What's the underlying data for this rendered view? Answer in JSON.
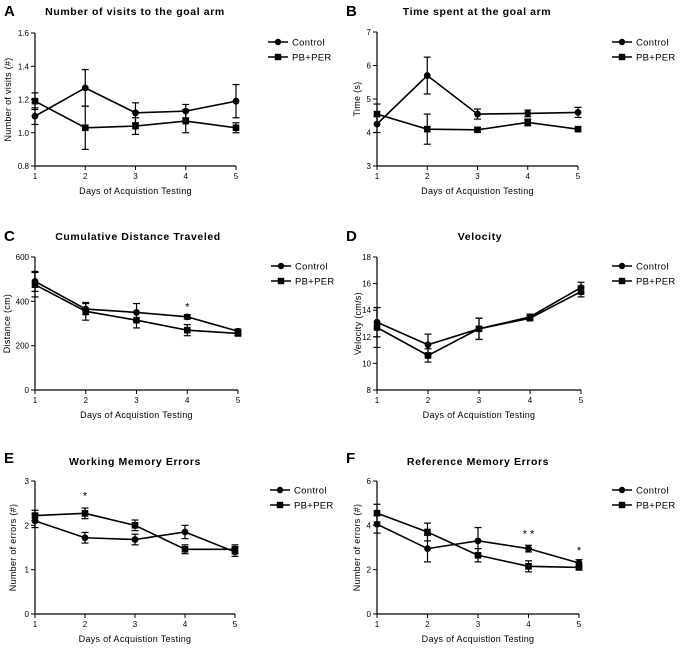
{
  "chart_data": [
    {
      "type": "line",
      "panel": "A",
      "title": "Number of visits to the goal arm",
      "xlabel": "Days of Acquistion Testing",
      "ylabel": "Number of visits (#)",
      "x": [
        1,
        2,
        3,
        4,
        5
      ],
      "xticks": [
        "1",
        "2",
        "3",
        "4",
        "5"
      ],
      "ylim": [
        0.8,
        1.6
      ],
      "yticks": [
        "0.8",
        "1.0",
        "1.2",
        "1.4",
        "1.6"
      ],
      "ytick_values": [
        0.8,
        1.0,
        1.2,
        1.4,
        1.6
      ],
      "series": [
        {
          "name": "Control",
          "marker": "circle",
          "values": [
            1.1,
            1.27,
            1.12,
            1.13,
            1.19
          ],
          "errors": [
            0.05,
            0.11,
            0.06,
            0.04,
            0.1
          ]
        },
        {
          "name": "PB+PER",
          "marker": "square",
          "values": [
            1.19,
            1.03,
            1.04,
            1.07,
            1.03
          ],
          "errors": [
            0.05,
            0.13,
            0.05,
            0.07,
            0.03
          ]
        }
      ],
      "annotations": []
    },
    {
      "type": "line",
      "panel": "B",
      "title": "Time spent at the goal arm",
      "xlabel": "Days of Acquistion Testing",
      "ylabel": "Time (s)",
      "x": [
        1,
        2,
        3,
        4,
        5
      ],
      "xticks": [
        "1",
        "2",
        "3",
        "4",
        "5"
      ],
      "ylim": [
        3,
        7
      ],
      "yticks": [
        "3",
        "4",
        "5",
        "6",
        "7"
      ],
      "ytick_values": [
        3,
        4,
        5,
        6,
        7
      ],
      "series": [
        {
          "name": "Control",
          "marker": "circle",
          "values": [
            4.25,
            5.7,
            4.55,
            4.57,
            4.6
          ],
          "errors": [
            0.25,
            0.55,
            0.15,
            0.1,
            0.15
          ]
        },
        {
          "name": "PB+PER",
          "marker": "square",
          "values": [
            4.55,
            4.1,
            4.08,
            4.3,
            4.1
          ],
          "errors": [
            0.3,
            0.45,
            0.06,
            0.1,
            0.05
          ]
        }
      ],
      "annotations": []
    },
    {
      "type": "line",
      "panel": "C",
      "title": "Cumulative Distance Traveled",
      "xlabel": "Days of Acquistion Testing",
      "ylabel": "Distance (cm)",
      "x": [
        1,
        2,
        3,
        4,
        5
      ],
      "xticks": [
        "1",
        "2",
        "3",
        "4",
        "5"
      ],
      "ylim": [
        0,
        600
      ],
      "yticks": [
        "0",
        "200",
        "400",
        "600"
      ],
      "ytick_values": [
        0,
        200,
        400,
        600
      ],
      "series": [
        {
          "name": "Control",
          "marker": "circle",
          "values": [
            490,
            365,
            350,
            330,
            265
          ],
          "errors": [
            45,
            25,
            40,
            10,
            10
          ]
        },
        {
          "name": "PB+PER",
          "marker": "square",
          "values": [
            475,
            355,
            315,
            270,
            255
          ],
          "errors": [
            55,
            40,
            35,
            25,
            10
          ]
        }
      ],
      "annotations": [
        {
          "text": "*",
          "x": 4,
          "y": 358
        }
      ]
    },
    {
      "type": "line",
      "panel": "D",
      "title": "Velocity",
      "xlabel": "Days of Acquistion Testing",
      "ylabel": "Velocity (cm/s)",
      "x": [
        1,
        2,
        3,
        4,
        5
      ],
      "xticks": [
        "1",
        "2",
        "3",
        "4",
        "5"
      ],
      "ylim": [
        8,
        18
      ],
      "yticks": [
        "8",
        "10",
        "12",
        "14",
        "16",
        "18"
      ],
      "ytick_values": [
        8,
        10,
        12,
        14,
        16,
        18
      ],
      "series": [
        {
          "name": "Control",
          "marker": "circle",
          "values": [
            13.1,
            11.4,
            12.6,
            13.5,
            15.7
          ],
          "errors": [
            1.1,
            0.8,
            0.8,
            0.2,
            0.4
          ]
        },
        {
          "name": "PB+PER",
          "marker": "square",
          "values": [
            12.7,
            10.6,
            12.6,
            13.4,
            15.4
          ],
          "errors": [
            1.5,
            0.5,
            0.8,
            0.2,
            0.4
          ]
        }
      ],
      "annotations": []
    },
    {
      "type": "line",
      "panel": "E",
      "title": "Working Memory  Errors",
      "xlabel": "Days of Acquistion Testing",
      "ylabel": "Number of errors (#)",
      "x": [
        1,
        2,
        3,
        4,
        5
      ],
      "xticks": [
        "1",
        "2",
        "3",
        "4",
        "5"
      ],
      "ylim": [
        0,
        3
      ],
      "yticks": [
        "0",
        "1",
        "2",
        "3"
      ],
      "ytick_values": [
        0,
        1,
        2,
        3
      ],
      "series": [
        {
          "name": "Control",
          "marker": "circle",
          "values": [
            2.1,
            1.72,
            1.68,
            1.85,
            1.4
          ],
          "errors": [
            0.15,
            0.12,
            0.12,
            0.15,
            0.1
          ]
        },
        {
          "name": "PB+PER",
          "marker": "square",
          "values": [
            2.22,
            2.27,
            2.0,
            1.46,
            1.46
          ],
          "errors": [
            0.12,
            0.12,
            0.12,
            0.1,
            0.1
          ]
        }
      ],
      "annotations": [
        {
          "text": "*",
          "x": 2,
          "y": 2.58
        }
      ]
    },
    {
      "type": "line",
      "panel": "F",
      "title": "Reference Memory Errors",
      "xlabel": "Days of Acquistion Testing",
      "ylabel": "Number of errors (#)",
      "x": [
        1,
        2,
        3,
        4,
        5
      ],
      "xticks": [
        "1",
        "2",
        "3",
        "4",
        "5"
      ],
      "ylim": [
        0,
        6
      ],
      "yticks": [
        "0",
        "2",
        "4",
        "6"
      ],
      "ytick_values": [
        0,
        2,
        4,
        6
      ],
      "series": [
        {
          "name": "Control",
          "marker": "circle",
          "values": [
            4.05,
            2.95,
            3.3,
            2.95,
            2.3
          ],
          "errors": [
            0.4,
            0.6,
            0.6,
            0.15,
            0.15
          ]
        },
        {
          "name": "PB+PER",
          "marker": "square",
          "values": [
            4.55,
            3.7,
            2.65,
            2.15,
            2.1
          ],
          "errors": [
            0.4,
            0.4,
            0.3,
            0.25,
            0.1
          ]
        }
      ],
      "annotations": [
        {
          "text": "* *",
          "x": 4,
          "y": 3.45
        },
        {
          "text": "*",
          "x": 5,
          "y": 2.7
        }
      ]
    }
  ]
}
